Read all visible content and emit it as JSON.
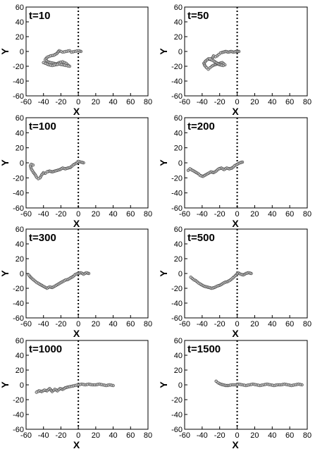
{
  "chart_data": [
    {
      "type": "scatter",
      "title": "t=10",
      "xlabel": "X",
      "ylabel": "Y",
      "xlim": [
        -60,
        80
      ],
      "ylim": [
        -60,
        60
      ],
      "xticks": [
        "-60",
        "-40",
        "-20",
        "0",
        "20",
        "40",
        "60",
        "80"
      ],
      "yticks": [
        "60",
        "40",
        "20",
        "0",
        "-20",
        "-40",
        "-60"
      ],
      "reference_line": {
        "x": 0,
        "style": "dotted"
      },
      "series": [
        {
          "x": [
            3,
            0,
            -4,
            -8,
            -10,
            -14,
            -18,
            -22,
            -25,
            -28,
            -32,
            -36,
            -38,
            -35,
            -32,
            -28,
            -25,
            -22,
            -18,
            -14,
            -12,
            -10,
            -14,
            -18,
            -22,
            -26,
            -30,
            -34,
            -38,
            -40
          ],
          "y": [
            0,
            1,
            0,
            -1,
            1,
            0,
            -1,
            1,
            -3,
            -5,
            -6,
            -8,
            -11,
            -14,
            -15,
            -16,
            -17,
            -15,
            -14,
            -16,
            -18,
            -20,
            -19,
            -18,
            -17,
            -18,
            -19,
            -18,
            -16,
            -15
          ]
        }
      ]
    },
    {
      "type": "scatter",
      "title": "t=50",
      "xlabel": "X",
      "ylabel": "Y",
      "xlim": [
        -60,
        80
      ],
      "ylim": [
        -60,
        60
      ],
      "xticks": [
        "-60",
        "-40",
        "-20",
        "0",
        "20",
        "40",
        "60",
        "80"
      ],
      "yticks": [
        "60",
        "40",
        "20",
        "0",
        "-20",
        "-40",
        "-60"
      ],
      "reference_line": {
        "x": 0,
        "style": "dotted"
      },
      "series": [
        {
          "x": [
            2,
            -1,
            -4,
            -7,
            -10,
            -13,
            -16,
            -19,
            -21,
            -23,
            -25,
            -27,
            -28,
            -30,
            -33,
            -36,
            -38,
            -37,
            -35,
            -33,
            -31,
            -29,
            -26,
            -23,
            -20,
            -17,
            -14,
            -16,
            -20,
            -24,
            -28,
            -31
          ],
          "y": [
            0,
            0,
            -1,
            0,
            -1,
            0,
            -1,
            -2,
            -4,
            -6,
            -7,
            -6,
            -8,
            -11,
            -10,
            -13,
            -16,
            -19,
            -22,
            -24,
            -22,
            -20,
            -18,
            -17,
            -16,
            -15,
            -18,
            -19,
            -18,
            -15,
            -12,
            -10
          ]
        }
      ]
    },
    {
      "type": "scatter",
      "title": "t=100",
      "xlabel": "X",
      "ylabel": "Y",
      "xlim": [
        -60,
        80
      ],
      "ylim": [
        -60,
        60
      ],
      "xticks": [
        "-60",
        "-40",
        "-20",
        "0",
        "20",
        "40",
        "60",
        "80"
      ],
      "yticks": [
        "60",
        "40",
        "20",
        "0",
        "-20",
        "-40",
        "-60"
      ],
      "reference_line": {
        "x": 0,
        "style": "dotted"
      },
      "series": [
        {
          "x": [
            6,
            3,
            0,
            -3,
            -6,
            -9,
            -12,
            -15,
            -18,
            -21,
            -24,
            -27,
            -30,
            -33,
            -36,
            -38,
            -40,
            -42,
            -44,
            -46,
            -48,
            -50,
            -52,
            -54,
            -55,
            -54,
            -52
          ],
          "y": [
            0,
            1,
            2,
            -1,
            -3,
            -6,
            -7,
            -8,
            -7,
            -9,
            -10,
            -11,
            -12,
            -11,
            -12,
            -14,
            -13,
            -16,
            -20,
            -21,
            -19,
            -15,
            -12,
            -8,
            -4,
            -2,
            -3
          ]
        }
      ]
    },
    {
      "type": "scatter",
      "title": "t=200",
      "xlabel": "X",
      "ylabel": "Y",
      "xlim": [
        -60,
        80
      ],
      "ylim": [
        -60,
        60
      ],
      "xticks": [
        "-60",
        "-40",
        "-20",
        "0",
        "20",
        "40",
        "60",
        "80"
      ],
      "yticks": [
        "60",
        "40",
        "20",
        "0",
        "-20",
        "-40",
        "-60"
      ],
      "reference_line": {
        "x": 0,
        "style": "dotted"
      },
      "series": [
        {
          "x": [
            6,
            3,
            0,
            -3,
            -6,
            -9,
            -12,
            -15,
            -18,
            -21,
            -24,
            -27,
            -30,
            -33,
            -36,
            -39,
            -42,
            -45,
            -48,
            -51,
            -54,
            -56
          ],
          "y": [
            1,
            0,
            -2,
            -4,
            -7,
            -8,
            -7,
            -9,
            -7,
            -8,
            -11,
            -13,
            -12,
            -14,
            -16,
            -18,
            -17,
            -14,
            -12,
            -10,
            -8,
            -10
          ]
        }
      ]
    },
    {
      "type": "scatter",
      "title": "t=300",
      "xlabel": "X",
      "ylabel": "Y",
      "xlim": [
        -60,
        80
      ],
      "ylim": [
        -60,
        60
      ],
      "xticks": [
        "-60",
        "-40",
        "-20",
        "0",
        "20",
        "40",
        "60",
        "80"
      ],
      "yticks": [
        "60",
        "40",
        "20",
        "0",
        "-20",
        "-40",
        "-60"
      ],
      "reference_line": {
        "x": 0,
        "style": "dotted"
      },
      "series": [
        {
          "x": [
            12,
            9,
            6,
            3,
            0,
            -3,
            -6,
            -9,
            -12,
            -15,
            -18,
            -21,
            -24,
            -27,
            -30,
            -33,
            -36,
            -39,
            -42,
            -45,
            -48,
            -51,
            -54,
            -57
          ],
          "y": [
            0,
            1,
            -1,
            1,
            0,
            -1,
            -4,
            -6,
            -8,
            -9,
            -11,
            -13,
            -15,
            -17,
            -19,
            -18,
            -20,
            -18,
            -16,
            -14,
            -12,
            -9,
            -6,
            -2
          ]
        }
      ]
    },
    {
      "type": "scatter",
      "title": "t=500",
      "xlabel": "X",
      "ylabel": "Y",
      "xlim": [
        -60,
        80
      ],
      "ylim": [
        -60,
        60
      ],
      "xticks": [
        "-60",
        "-40",
        "-20",
        "0",
        "20",
        "40",
        "60",
        "80"
      ],
      "yticks": [
        "60",
        "40",
        "20",
        "0",
        "-20",
        "-40",
        "-60"
      ],
      "reference_line": {
        "x": 0,
        "style": "dotted"
      },
      "series": [
        {
          "x": [
            16,
            13,
            10,
            7,
            4,
            1,
            -2,
            -5,
            -8,
            -11,
            -14,
            -17,
            -20,
            -23,
            -26,
            -29,
            -32,
            -35,
            -38,
            -41,
            -44,
            -47,
            -50,
            -53
          ],
          "y": [
            0,
            1,
            0,
            -2,
            -1,
            1,
            -3,
            -6,
            -9,
            -11,
            -12,
            -14,
            -16,
            -17,
            -19,
            -20,
            -19,
            -18,
            -17,
            -15,
            -13,
            -10,
            -8,
            -5
          ]
        }
      ]
    },
    {
      "type": "scatter",
      "title": "t=1000",
      "xlabel": "X",
      "ylabel": "Y",
      "xlim": [
        -60,
        80
      ],
      "ylim": [
        -60,
        60
      ],
      "xticks": [
        "-60",
        "-40",
        "-20",
        "0",
        "20",
        "40",
        "60",
        "80"
      ],
      "yticks": [
        "60",
        "40",
        "20",
        "0",
        "-20",
        "-40",
        "-60"
      ],
      "reference_line": {
        "x": 0,
        "style": "dotted"
      },
      "series": [
        {
          "x": [
            40,
            36,
            32,
            28,
            24,
            20,
            16,
            12,
            8,
            4,
            0,
            -4,
            -8,
            -12,
            -15,
            -18,
            -21,
            -24,
            -27,
            -30,
            -33,
            -36,
            -39,
            -42,
            -45,
            -48
          ],
          "y": [
            -1,
            0,
            -1,
            0,
            1,
            0,
            0,
            1,
            0,
            1,
            0,
            -1,
            -2,
            -3,
            -4,
            -6,
            -5,
            -8,
            -6,
            -9,
            -5,
            -8,
            -7,
            -9,
            -8,
            -10
          ]
        }
      ]
    },
    {
      "type": "scatter",
      "title": "t=1500",
      "xlabel": "X",
      "ylabel": "Y",
      "xlim": [
        -60,
        80
      ],
      "ylim": [
        -60,
        60
      ],
      "xticks": [
        "-60",
        "-40",
        "-20",
        "0",
        "20",
        "40",
        "60",
        "80"
      ],
      "yticks": [
        "60",
        "40",
        "20",
        "0",
        "-20",
        "-40",
        "-60"
      ],
      "reference_line": {
        "x": 0,
        "style": "dotted"
      },
      "series": [
        {
          "x": [
            74,
            70,
            66,
            62,
            58,
            54,
            50,
            46,
            42,
            38,
            34,
            30,
            26,
            22,
            18,
            14,
            10,
            6,
            2,
            -2,
            -6,
            -10,
            -13,
            -16,
            -19,
            -22,
            -24
          ],
          "y": [
            0,
            1,
            0,
            -1,
            0,
            1,
            0,
            0,
            -1,
            0,
            1,
            0,
            -1,
            0,
            1,
            0,
            -1,
            0,
            1,
            0,
            0,
            -1,
            -1,
            0,
            1,
            3,
            5
          ]
        }
      ]
    }
  ]
}
